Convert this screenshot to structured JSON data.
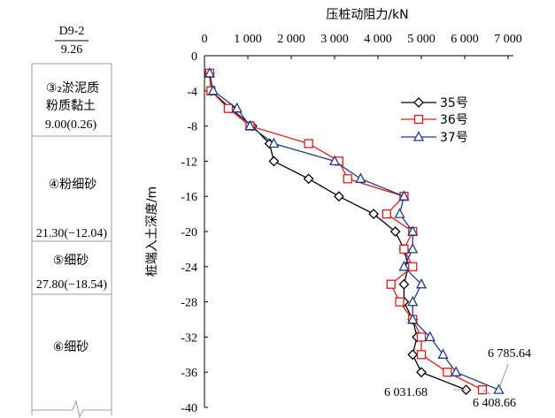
{
  "chart_data": {
    "type": "line",
    "title": "",
    "xlabel": "压桩动阻力/kN",
    "ylabel": "桩端入土深度/m",
    "xlim": [
      0,
      7000
    ],
    "ylim": [
      0,
      -40
    ],
    "x_ticks": [
      "0",
      "1 000",
      "2 000",
      "3 000",
      "4 000",
      "5 000",
      "6 000",
      "7 000"
    ],
    "y_ticks": [
      "0",
      "-4",
      "-8",
      "-12",
      "-16",
      "-20",
      "-24",
      "-28",
      "-32",
      "-36",
      "-40"
    ],
    "x_axis_position": "top",
    "legend_position": "top-right",
    "grid": false,
    "series": [
      {
        "name": "35号",
        "color": "#000000",
        "marker": "diamond",
        "points": [
          [
            120,
            -2
          ],
          [
            150,
            -4
          ],
          [
            600,
            -6
          ],
          [
            1100,
            -8
          ],
          [
            1500,
            -10
          ],
          [
            1600,
            -12
          ],
          [
            2400,
            -14
          ],
          [
            3100,
            -16
          ],
          [
            3900,
            -18
          ],
          [
            4400,
            -20
          ],
          [
            4600,
            -22
          ],
          [
            4700,
            -24
          ],
          [
            4600,
            -26
          ],
          [
            4600,
            -28
          ],
          [
            4800,
            -30
          ],
          [
            4900,
            -32
          ],
          [
            4800,
            -34
          ],
          [
            5000,
            -36
          ],
          [
            6031.68,
            -38
          ]
        ]
      },
      {
        "name": "36号",
        "color": "#e8191c",
        "marker": "square",
        "points": [
          [
            120,
            -2
          ],
          [
            150,
            -4
          ],
          [
            550,
            -6
          ],
          [
            1050,
            -8
          ],
          [
            2400,
            -10
          ],
          [
            3100,
            -12
          ],
          [
            3300,
            -14
          ],
          [
            4600,
            -16
          ],
          [
            4200,
            -18
          ],
          [
            4800,
            -20
          ],
          [
            4600,
            -22
          ],
          [
            4800,
            -24
          ],
          [
            4300,
            -26
          ],
          [
            4500,
            -28
          ],
          [
            4800,
            -30
          ],
          [
            5000,
            -32
          ],
          [
            5000,
            -34
          ],
          [
            5600,
            -36
          ],
          [
            6408.66,
            -38
          ]
        ]
      },
      {
        "name": "37号",
        "color": "#1f3c88",
        "marker": "triangle",
        "points": [
          [
            120,
            -2
          ],
          [
            200,
            -4
          ],
          [
            750,
            -6
          ],
          [
            1050,
            -8
          ],
          [
            1600,
            -10
          ],
          [
            3000,
            -12
          ],
          [
            3600,
            -14
          ],
          [
            4600,
            -16
          ],
          [
            4500,
            -18
          ],
          [
            4800,
            -20
          ],
          [
            4800,
            -22
          ],
          [
            4600,
            -24
          ],
          [
            5000,
            -26
          ],
          [
            4800,
            -28
          ],
          [
            4800,
            -30
          ],
          [
            5200,
            -32
          ],
          [
            5500,
            -34
          ],
          [
            5800,
            -36
          ],
          [
            6785.64,
            -38
          ]
        ]
      }
    ],
    "annotations": [
      {
        "text": "6 785.64",
        "series": "37号"
      },
      {
        "text": "6 031.68",
        "series": "35号"
      },
      {
        "text": "6 408.66",
        "series": "36号"
      }
    ]
  },
  "borehole": {
    "id": "D9-2",
    "elevation": "9.26",
    "layers": [
      {
        "name_line1": "③₂淤泥质",
        "name_line2": "粉质黏土",
        "bottom": "9.00(0.26)"
      },
      {
        "name_line1": "④粉细砂",
        "name_line2": "",
        "bottom": "21.30(−12.04)"
      },
      {
        "name_line1": "⑤细砂",
        "name_line2": "",
        "bottom": "27.80(−18.54)"
      },
      {
        "name_line1": "⑥细砂",
        "name_line2": "",
        "bottom": ""
      }
    ]
  },
  "colors": {
    "axis": "#000000",
    "column_line": "#9e9e9e"
  }
}
